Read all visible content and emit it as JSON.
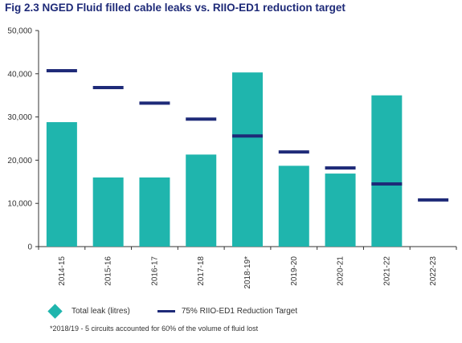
{
  "chart_data": {
    "type": "bar",
    "title": "Fig 2.3 NGED Fluid filled cable leaks vs. RIIO-ED1 reduction target",
    "categories": [
      "2014-15",
      "2015-16",
      "2016-17",
      "2017-18",
      "2018-19*",
      "2019-20",
      "2020-21",
      "2021-22",
      "2022-23"
    ],
    "series": [
      {
        "name": "Total leak (litres)",
        "kind": "bar",
        "color": "#1fb5ad",
        "values": [
          28800,
          16000,
          16000,
          21300,
          40300,
          18700,
          16900,
          35000,
          null
        ]
      },
      {
        "name": "75% RIIO-ED1 Reduction Target",
        "kind": "marker",
        "color": "#1e2a78",
        "values": [
          40700,
          36800,
          33200,
          29500,
          25600,
          21900,
          18200,
          14500,
          10800
        ]
      }
    ],
    "yticks": [
      0,
      10000,
      20000,
      30000,
      40000,
      50000
    ],
    "ytick_labels": [
      "0",
      "10,000",
      "20,000",
      "30,000",
      "40,000",
      "50,000"
    ],
    "ylim": [
      0,
      50000
    ],
    "grid": false,
    "legend_position": "bottom",
    "footnote": "*2018/19 - 5 circuits accounted for 60% of the volume of fluid lost"
  }
}
